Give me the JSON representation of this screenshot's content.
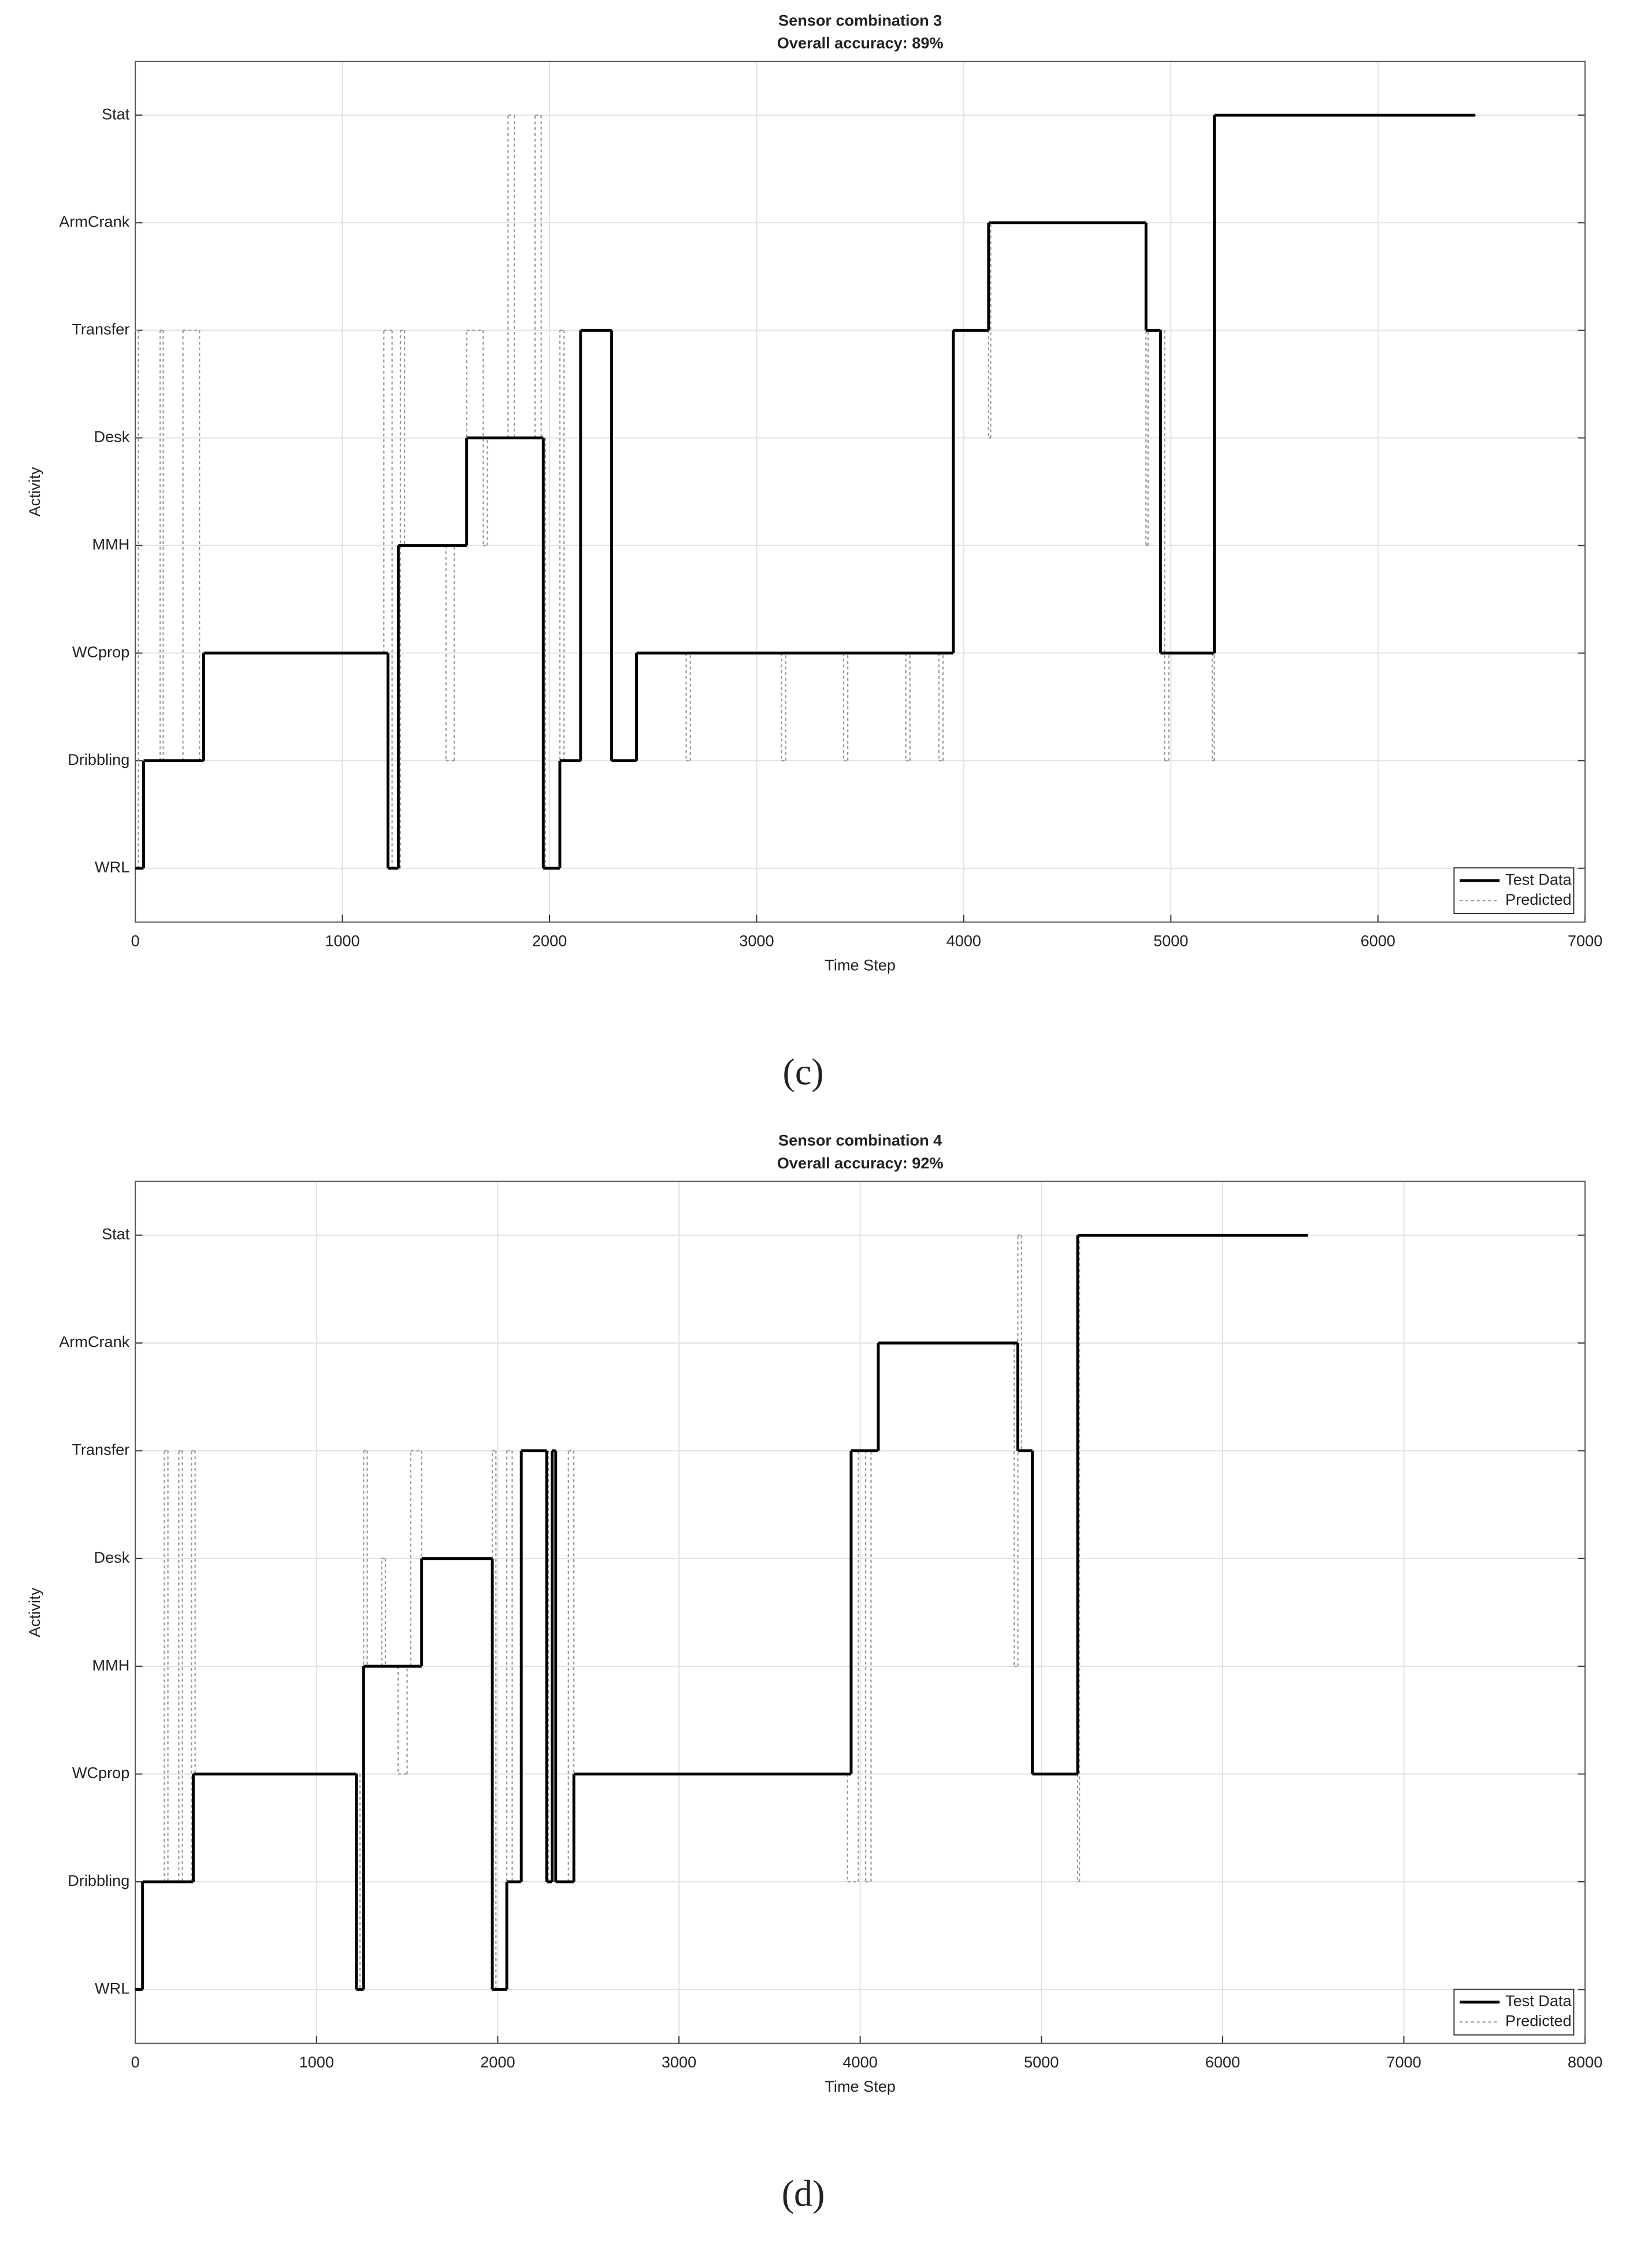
{
  "chart_data": [
    {
      "type": "line",
      "step": "post",
      "title": "Sensor combination 3",
      "subtitle": "Overall accuracy: 89%",
      "x_label": "Time Step",
      "y_label": "Activity",
      "panel_label": "(c)",
      "xlim": [
        0,
        7000
      ],
      "xticks": [
        0,
        1000,
        2000,
        3000,
        4000,
        5000,
        6000,
        7000
      ],
      "ylim": [
        0.5,
        8.5
      ],
      "yticks": [
        {
          "value": 1,
          "label": "WRL"
        },
        {
          "value": 2,
          "label": "Dribbling"
        },
        {
          "value": 3,
          "label": "WCprop"
        },
        {
          "value": 4,
          "label": "MMH"
        },
        {
          "value": 5,
          "label": "Desk"
        },
        {
          "value": 6,
          "label": "Transfer"
        },
        {
          "value": 7,
          "label": "ArmCrank"
        },
        {
          "value": 8,
          "label": "Stat"
        }
      ],
      "grid": true,
      "legend": "lower right",
      "series": [
        {
          "name": "Test Data",
          "color": "#000000",
          "line_style": "solid",
          "x": [
            0,
            40,
            330,
            1220,
            1270,
            1600,
            1970,
            2050,
            2150,
            2300,
            2420,
            3950,
            4120,
            4880,
            4950,
            5210,
            6470
          ],
          "values": [
            1,
            2,
            3,
            1,
            4,
            5,
            1,
            2,
            6,
            2,
            3,
            6,
            7,
            6,
            3,
            8,
            8
          ]
        },
        {
          "name": "Predicted",
          "color": "#999999",
          "line_style": "dotted",
          "x": [
            0,
            15,
            40,
            120,
            135,
            230,
            310,
            330,
            1200,
            1240,
            1280,
            1300,
            1500,
            1540,
            1600,
            1680,
            1700,
            1800,
            1830,
            1930,
            1960,
            1980,
            2050,
            2070,
            2150,
            2300,
            2420,
            2660,
            2680,
            3120,
            3140,
            3420,
            3440,
            3720,
            3740,
            3880,
            3900,
            3950,
            4120,
            4130,
            4880,
            4890,
            4970,
            4990,
            5200,
            5210,
            6470
          ],
          "values": [
            6,
            1,
            2,
            6,
            2,
            6,
            2,
            3,
            6,
            1,
            6,
            4,
            2,
            4,
            6,
            4,
            5,
            8,
            5,
            8,
            5,
            1,
            6,
            2,
            6,
            2,
            3,
            2,
            3,
            2,
            3,
            2,
            3,
            2,
            3,
            2,
            3,
            6,
            5,
            7,
            4,
            6,
            2,
            3,
            2,
            8,
            8
          ]
        }
      ]
    },
    {
      "type": "line",
      "step": "post",
      "title": "Sensor combination 4",
      "subtitle": "Overall accuracy: 92%",
      "x_label": "Time Step",
      "y_label": "Activity",
      "panel_label": "(d)",
      "xlim": [
        0,
        8000
      ],
      "xticks": [
        0,
        1000,
        2000,
        3000,
        4000,
        5000,
        6000,
        7000,
        8000
      ],
      "ylim": [
        0.5,
        8.5
      ],
      "yticks": [
        {
          "value": 1,
          "label": "WRL"
        },
        {
          "value": 2,
          "label": "Dribbling"
        },
        {
          "value": 3,
          "label": "WCprop"
        },
        {
          "value": 4,
          "label": "MMH"
        },
        {
          "value": 5,
          "label": "Desk"
        },
        {
          "value": 6,
          "label": "Transfer"
        },
        {
          "value": 7,
          "label": "ArmCrank"
        },
        {
          "value": 8,
          "label": "Stat"
        }
      ],
      "grid": true,
      "legend": "lower right",
      "series": [
        {
          "name": "Test Data",
          "color": "#000000",
          "line_style": "solid",
          "x": [
            0,
            40,
            320,
            1220,
            1260,
            1580,
            1970,
            2050,
            2130,
            2270,
            2300,
            2320,
            2420,
            3950,
            4100,
            4870,
            4950,
            5200,
            6470
          ],
          "values": [
            1,
            2,
            3,
            1,
            4,
            5,
            1,
            2,
            6,
            2,
            6,
            2,
            3,
            6,
            7,
            6,
            3,
            8,
            8
          ]
        },
        {
          "name": "Predicted",
          "color": "#999999",
          "line_style": "dotted",
          "x": [
            0,
            40,
            160,
            180,
            240,
            260,
            310,
            330,
            1240,
            1260,
            1280,
            1360,
            1380,
            1450,
            1500,
            1520,
            1580,
            1970,
            1990,
            2050,
            2080,
            2130,
            2280,
            2390,
            2420,
            3930,
            3990,
            4030,
            4060,
            4100,
            4850,
            4870,
            4890,
            4950,
            5200,
            5210,
            6470
          ],
          "values": [
            1,
            2,
            6,
            2,
            6,
            2,
            6,
            3,
            1,
            6,
            4,
            5,
            4,
            3,
            4,
            6,
            5,
            6,
            1,
            6,
            2,
            6,
            2,
            6,
            3,
            2,
            6,
            2,
            6,
            7,
            4,
            8,
            6,
            3,
            2,
            8,
            8
          ]
        }
      ]
    }
  ]
}
